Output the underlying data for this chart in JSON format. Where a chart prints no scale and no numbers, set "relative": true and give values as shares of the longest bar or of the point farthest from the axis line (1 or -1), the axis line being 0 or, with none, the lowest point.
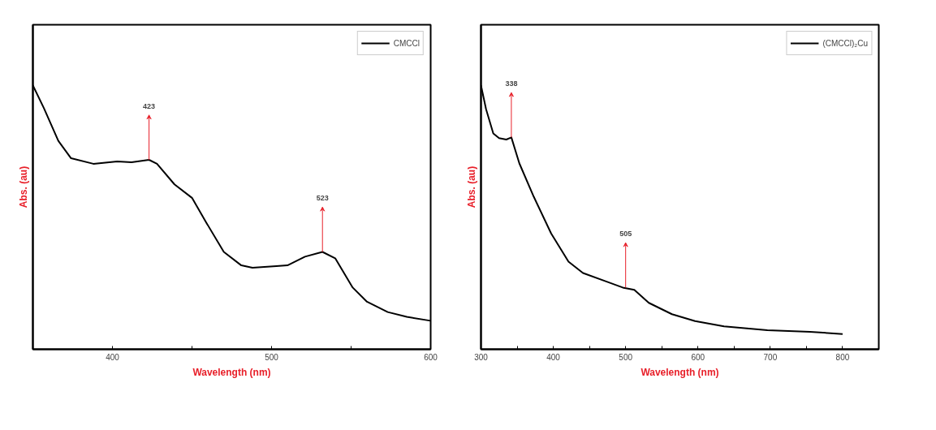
{
  "chart_data": [
    {
      "type": "line",
      "relative": true,
      "xlabel": "Wavelength (nm)",
      "ylabel": "Abs. (au)",
      "legend": "top right",
      "tick_labels": "x",
      "xlim": [
        350,
        600
      ],
      "xticks": [
        400,
        {
          "value": 450,
          "label": null
        },
        500,
        {
          "value": 550,
          "label": null
        },
        600
      ],
      "series": [
        {
          "name": "CMCCl",
          "color": "#000000",
          "x": [
            350,
            357,
            366,
            374,
            388,
            403,
            412,
            423,
            428,
            439,
            450,
            459,
            470,
            481,
            488,
            503,
            510,
            521,
            532,
            540,
            551,
            560,
            573,
            585,
            600
          ],
          "values": [
            1.0,
            0.913,
            0.79,
            0.724,
            0.703,
            0.712,
            0.709,
            0.718,
            0.703,
            0.625,
            0.574,
            0.48,
            0.369,
            0.318,
            0.309,
            0.315,
            0.318,
            0.351,
            0.369,
            0.345,
            0.234,
            0.18,
            0.141,
            0.123,
            0.108
          ]
        }
      ],
      "annotations": [
        {
          "text": "423",
          "x": 423,
          "y": 0.718
        },
        {
          "text": "523",
          "x": 532,
          "y": 0.369
        }
      ]
    },
    {
      "type": "line",
      "relative": true,
      "xlabel": "Wavelength (nm)",
      "ylabel": "Abs. (au)",
      "legend": "top right",
      "tick_labels": "x",
      "xlim": [
        300,
        850
      ],
      "xticks": [
        300,
        {
          "value": 350,
          "label": null
        },
        400,
        {
          "value": 450,
          "label": null
        },
        500,
        {
          "value": 550,
          "label": null
        },
        600,
        {
          "value": 650,
          "label": null
        },
        700,
        {
          "value": 750,
          "label": null
        },
        800
      ],
      "series": [
        {
          "name": "(CMCCl)₂Cu",
          "color": "#000000",
          "x": [
            300,
            307,
            317,
            325,
            335,
            342,
            353,
            373,
            397,
            421,
            441,
            473,
            496,
            512,
            532,
            564,
            596,
            636,
            696,
            755,
            800
          ],
          "values": [
            1.0,
            0.91,
            0.818,
            0.8,
            0.795,
            0.803,
            0.705,
            0.578,
            0.439,
            0.332,
            0.289,
            0.257,
            0.234,
            0.225,
            0.176,
            0.133,
            0.107,
            0.087,
            0.072,
            0.066,
            0.058
          ]
        }
      ],
      "annotations": [
        {
          "text": "338",
          "x": 342,
          "y": 0.803
        },
        {
          "text": "505",
          "x": 500,
          "y": 0.234
        }
      ]
    }
  ]
}
